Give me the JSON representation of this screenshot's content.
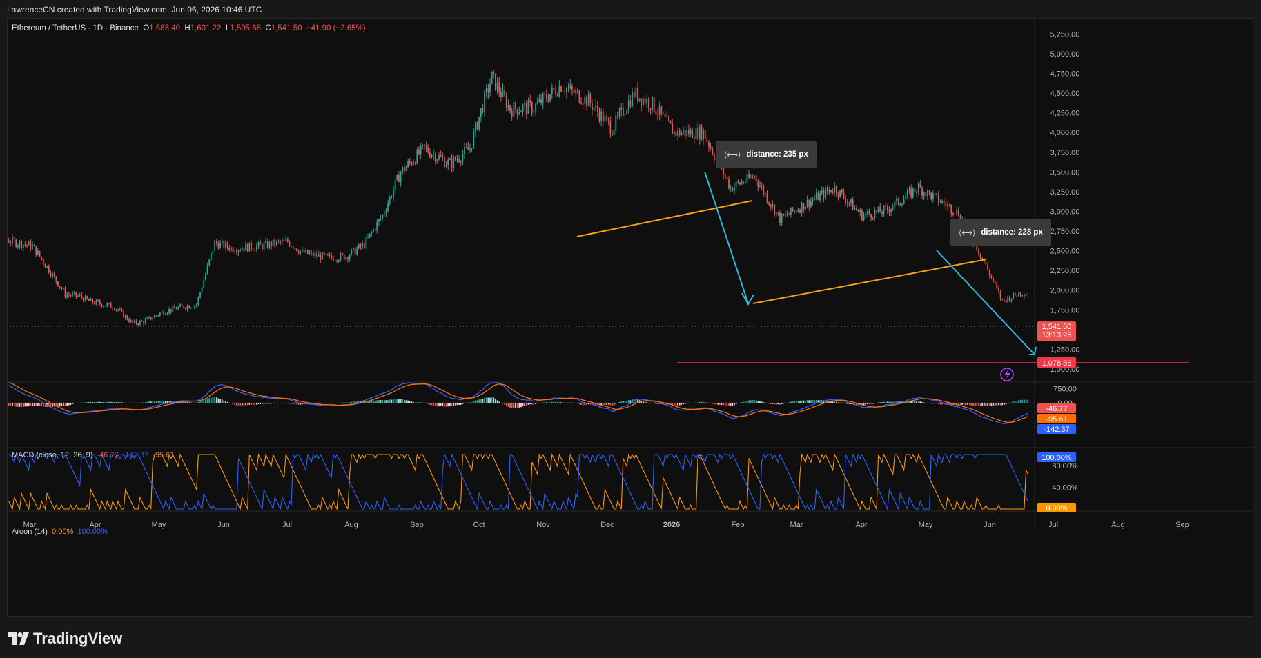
{
  "attribution": "LawrenceCN created with TradingView.com, Jun 06, 2026 10:46 UTC",
  "footer_logo_text": "TradingView",
  "header": {
    "symbol": "Ethereum / TetherUS · 1D · Binance",
    "o_label": "O",
    "o_value": "1,583.40",
    "h_label": "H",
    "h_value": "1,601.22",
    "l_label": "L",
    "l_value": "1,505.68",
    "c_label": "C",
    "c_value": "1,541.50",
    "change": "−41.90 (−2.65%)"
  },
  "colors": {
    "up": "#26a69a",
    "down": "#ef5350",
    "trendline": "#f7a21b",
    "arrow": "#3bb5d6",
    "target": "#f23645",
    "aroon_up": "#ff9800",
    "aroon_down": "#2962ff",
    "macd_line": "#2962ff",
    "signal_line": "#ff6d00"
  },
  "annotations": {
    "tooltip1": "distance: 235 px",
    "tooltip2": "distance: 228 px",
    "tooltip_icon": "measure-icon"
  },
  "macd_legend": {
    "name": "MACD (close, 12, 26, 9)",
    "hist": "-46.77",
    "macd": "-142.37",
    "signal": "-95.61"
  },
  "aroon_legend": {
    "name": "Aroon (14)",
    "up": "0.00%",
    "down": "100.00%"
  },
  "chart_data": {
    "type": "candlestick",
    "price_axis": {
      "ticks": [
        "5,250.00",
        "5,000.00",
        "4,750.00",
        "4,500.00",
        "4,250.00",
        "4,000.00",
        "3,750.00",
        "3,500.00",
        "3,250.00",
        "3,000.00",
        "2,750.00",
        "2,500.00",
        "2,250.00",
        "2,000.00",
        "1,750.00",
        "1,250.00",
        "1,000.00",
        "750.00"
      ],
      "last_price_label": "1,541.50",
      "countdown_label": "13:13:25",
      "target_label": "1,078.86"
    },
    "time_axis": [
      "Mar",
      "Apr",
      "May",
      "Jun",
      "Jul",
      "Aug",
      "Sep",
      "Oct",
      "Nov",
      "Dec",
      "2026",
      "Feb",
      "Mar",
      "Apr",
      "May",
      "Jun",
      "Jul",
      "Aug",
      "Sep"
    ],
    "macd_axis": {
      "ticks": [
        "0.00"
      ],
      "hist_label": "-46.77",
      "signal_label": "-95.61",
      "macd_label": "-142.37"
    },
    "aroon_axis": {
      "ticks": [
        "80.00%",
        "40.00%"
      ],
      "down_label": "100.00%",
      "up_label": "0.00%"
    }
  }
}
